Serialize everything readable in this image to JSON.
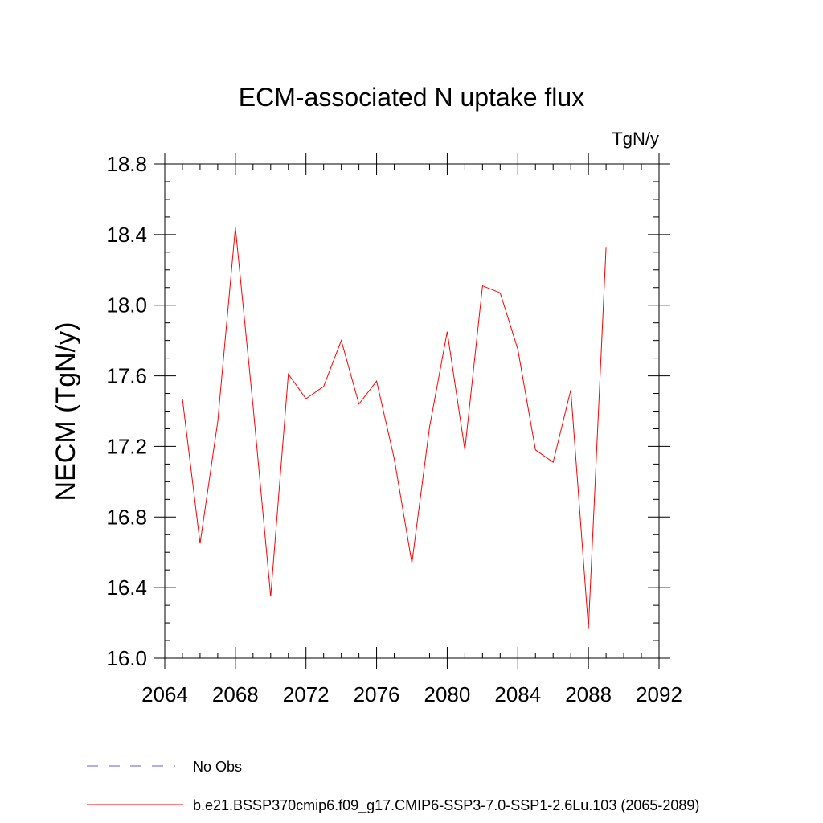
{
  "chart_data": {
    "type": "line",
    "title": "ECM-associated N uptake flux",
    "units_label": "TgN/y",
    "ylabel": "NECM  (TgN/y)",
    "xlabel": "",
    "xlim": [
      2064,
      2092
    ],
    "ylim": [
      16.0,
      18.8
    ],
    "x_ticks": [
      "2064",
      "2068",
      "2072",
      "2076",
      "2080",
      "2084",
      "2088",
      "2092"
    ],
    "y_ticks": [
      "16.0",
      "16.4",
      "16.8",
      "17.2",
      "17.6",
      "18.0",
      "18.4",
      "18.8"
    ],
    "series": [
      {
        "name": "b.e21.BSSP370cmip6.f09_g17.CMIP6-SSP3-7.0-SSP1-2.6Lu.103 (2065-2089)",
        "color": "#ff0000",
        "x": [
          2065,
          2066,
          2067,
          2068,
          2069,
          2070,
          2071,
          2072,
          2073,
          2074,
          2075,
          2076,
          2077,
          2078,
          2079,
          2080,
          2081,
          2082,
          2083,
          2084,
          2085,
          2086,
          2087,
          2088,
          2089
        ],
        "values": [
          17.47,
          16.65,
          17.34,
          18.44,
          17.43,
          16.35,
          17.61,
          17.47,
          17.54,
          17.8,
          17.44,
          17.57,
          17.13,
          16.54,
          17.31,
          17.85,
          17.18,
          18.11,
          18.07,
          17.75,
          17.18,
          17.11,
          17.52,
          16.17,
          18.33
        ]
      }
    ],
    "legend": [
      {
        "label": "No Obs",
        "style": "dashed",
        "color": "#6a5acd"
      },
      {
        "label": "b.e21.BSSP370cmip6.f09_g17.CMIP6-SSP3-7.0-SSP1-2.6Lu.103 (2065-2089)",
        "style": "solid",
        "color": "#ff0000"
      }
    ]
  }
}
